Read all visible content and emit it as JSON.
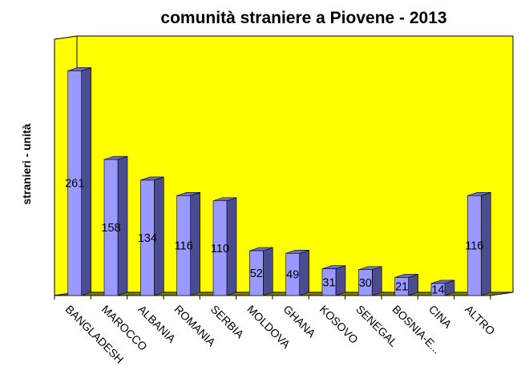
{
  "chart_data": {
    "type": "bar",
    "title": "comunità straniere a Piovene - 2013",
    "ylabel": "stranieri - unità",
    "xlabel": "",
    "categories": [
      "BANGLADESH",
      "MAROCCO",
      "ALBANIA",
      "ROMANIA",
      "SERBIA",
      "MOLDOVA",
      "GHANA",
      "KOSOVO",
      "SENEGAL",
      "BOSNIA-E...",
      "CINA",
      "ALTRO"
    ],
    "values": [
      261,
      158,
      134,
      116,
      110,
      52,
      49,
      31,
      30,
      21,
      14,
      116
    ],
    "ylim": [
      0,
      300
    ],
    "grid": false,
    "legend": "none",
    "colors": {
      "plot_background": "#ffff00",
      "bar_front": "#9999ff",
      "bar_side": "#4b4b8f",
      "bar_top": "#6f6fc4",
      "floor": "#808000"
    }
  }
}
